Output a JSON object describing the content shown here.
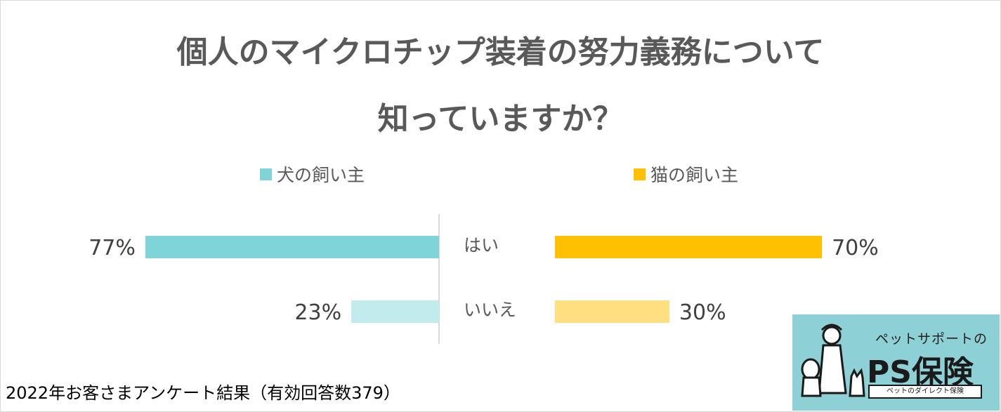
{
  "chart_data": {
    "type": "bar",
    "orientation": "horizontal-butterfly",
    "title_lines": [
      "個人のマイクロチップ装着の努力義務について",
      "知っていますか？"
    ],
    "categories": [
      "はい",
      "いいえ"
    ],
    "series": [
      {
        "name": "犬の飼い主",
        "values": [
          77,
          23
        ],
        "labels": [
          "77%",
          "23%"
        ],
        "colors": [
          "#7fd4d9",
          "#c2ebed"
        ]
      },
      {
        "name": "猫の飼い主",
        "values": [
          70,
          30
        ],
        "labels": [
          "70%",
          "30%"
        ],
        "colors": [
          "#ffc000",
          "#ffdf7f"
        ]
      }
    ],
    "legend_colors": [
      "#7fd4d9",
      "#ffc000"
    ],
    "legend_position": "top",
    "xlim": [
      0,
      100
    ],
    "grid": false
  },
  "footer": "2022年お客さまアンケート結果（有効回答数379）",
  "logo": {
    "tagline": "ペットサポートの",
    "brand": "PS保険",
    "subtitle": "ペットのダイレクト保険"
  }
}
